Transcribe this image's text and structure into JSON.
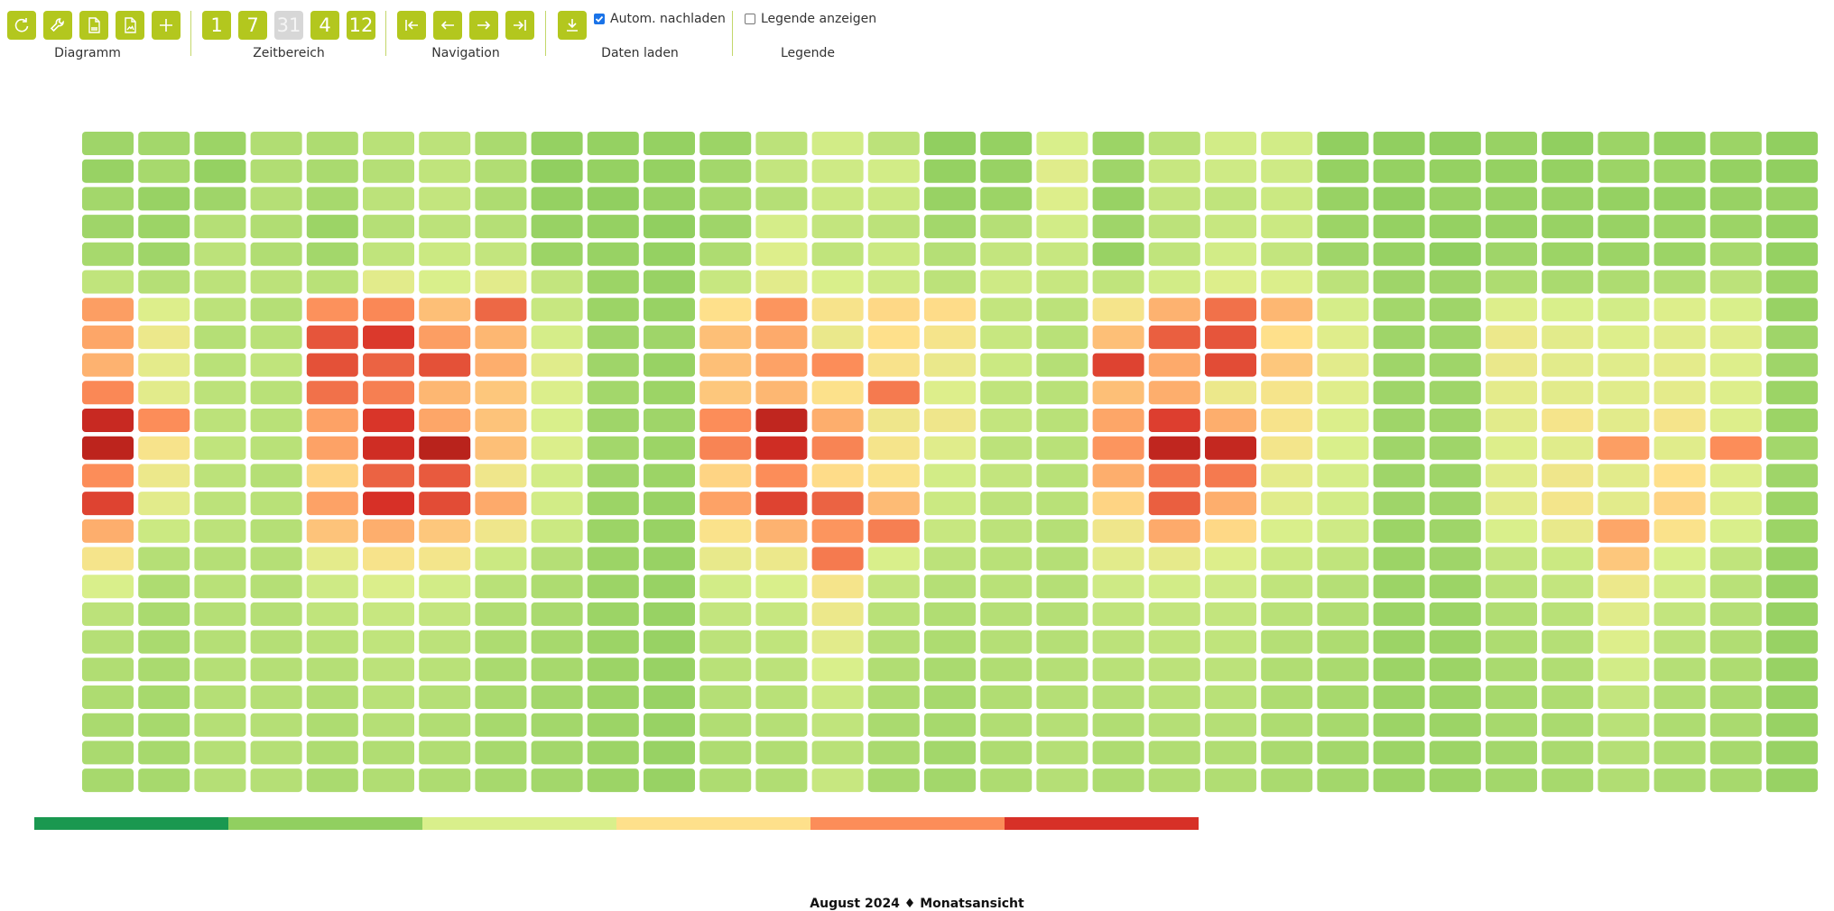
{
  "toolbar": {
    "groups": [
      {
        "label": "Diagramm",
        "buttons": [
          {
            "icon": "refresh-icon"
          },
          {
            "icon": "wrench-icon"
          },
          {
            "icon": "csv-file-icon"
          },
          {
            "icon": "image-file-icon"
          },
          {
            "icon": "plus-icon"
          }
        ]
      },
      {
        "label": "Zeitbereich",
        "buttons": [
          {
            "text": "1"
          },
          {
            "text": "7"
          },
          {
            "text": "31",
            "disabled": true
          },
          {
            "text": "4"
          },
          {
            "text": "12"
          }
        ]
      },
      {
        "label": "Navigation",
        "buttons": [
          {
            "icon": "first-icon"
          },
          {
            "icon": "prev-icon"
          },
          {
            "icon": "next-icon"
          },
          {
            "icon": "last-icon"
          }
        ]
      },
      {
        "label": "Daten laden",
        "buttons": [
          {
            "icon": "download-icon"
          }
        ]
      },
      {
        "label": "Legende"
      }
    ],
    "auto_reload": {
      "label": "Autom. nachladen",
      "checked": true
    },
    "show_legend": {
      "label": "Legende anzeigen",
      "checked": false
    }
  },
  "colors": {
    "accent": "#b3c71e",
    "scale": [
      "#1a9850",
      "#91cf60",
      "#d9ef8b",
      "#fee08b",
      "#fc8d59",
      "#d73027"
    ]
  },
  "chart_data": {
    "type": "heatmap",
    "title": "August 2024 ♦ Monatsansicht",
    "days": 31,
    "hours": 24,
    "value_range": [
      0,
      1
    ],
    "grid": [
      [
        0.24,
        0.25,
        0.23,
        0.29,
        0.28,
        0.31,
        0.32,
        0.27,
        0.21,
        0.21,
        0.21,
        0.23,
        0.32,
        0.38,
        0.32,
        0.2,
        0.21,
        0.4,
        0.23,
        0.31,
        0.38,
        0.38,
        0.2,
        0.2,
        0.2,
        0.22,
        0.2,
        0.23,
        0.21,
        0.23,
        0.2
      ],
      [
        0.22,
        0.26,
        0.21,
        0.29,
        0.27,
        0.3,
        0.33,
        0.29,
        0.2,
        0.21,
        0.21,
        0.25,
        0.34,
        0.37,
        0.38,
        0.21,
        0.22,
        0.44,
        0.24,
        0.35,
        0.37,
        0.37,
        0.21,
        0.21,
        0.21,
        0.21,
        0.21,
        0.23,
        0.23,
        0.21,
        0.2
      ],
      [
        0.25,
        0.22,
        0.24,
        0.3,
        0.26,
        0.32,
        0.34,
        0.28,
        0.21,
        0.2,
        0.22,
        0.26,
        0.3,
        0.36,
        0.36,
        0.22,
        0.23,
        0.42,
        0.22,
        0.34,
        0.33,
        0.36,
        0.22,
        0.2,
        0.22,
        0.22,
        0.22,
        0.21,
        0.21,
        0.22,
        0.22
      ],
      [
        0.24,
        0.23,
        0.3,
        0.29,
        0.23,
        0.3,
        0.32,
        0.3,
        0.22,
        0.21,
        0.2,
        0.24,
        0.39,
        0.34,
        0.32,
        0.25,
        0.3,
        0.38,
        0.24,
        0.32,
        0.35,
        0.36,
        0.23,
        0.21,
        0.21,
        0.22,
        0.22,
        0.22,
        0.23,
        0.23,
        0.21
      ],
      [
        0.26,
        0.24,
        0.32,
        0.29,
        0.25,
        0.33,
        0.36,
        0.34,
        0.23,
        0.22,
        0.21,
        0.28,
        0.42,
        0.33,
        0.36,
        0.3,
        0.34,
        0.35,
        0.22,
        0.33,
        0.38,
        0.34,
        0.24,
        0.22,
        0.2,
        0.24,
        0.23,
        0.23,
        0.23,
        0.26,
        0.21
      ],
      [
        0.33,
        0.3,
        0.32,
        0.32,
        0.31,
        0.45,
        0.4,
        0.45,
        0.34,
        0.23,
        0.22,
        0.35,
        0.45,
        0.4,
        0.37,
        0.32,
        0.37,
        0.35,
        0.33,
        0.38,
        0.42,
        0.41,
        0.32,
        0.24,
        0.24,
        0.28,
        0.27,
        0.28,
        0.29,
        0.32,
        0.23
      ],
      [
        0.76,
        0.42,
        0.32,
        0.3,
        0.79,
        0.81,
        0.68,
        0.88,
        0.35,
        0.23,
        0.22,
        0.6,
        0.78,
        0.56,
        0.62,
        0.61,
        0.34,
        0.32,
        0.55,
        0.71,
        0.86,
        0.7,
        0.39,
        0.25,
        0.24,
        0.42,
        0.4,
        0.38,
        0.42,
        0.4,
        0.22
      ],
      [
        0.74,
        0.5,
        0.3,
        0.31,
        0.92,
        0.98,
        0.76,
        0.7,
        0.39,
        0.24,
        0.24,
        0.68,
        0.73,
        0.49,
        0.6,
        0.55,
        0.35,
        0.31,
        0.68,
        0.9,
        0.92,
        0.6,
        0.43,
        0.24,
        0.24,
        0.5,
        0.45,
        0.42,
        0.44,
        0.43,
        0.24
      ],
      [
        0.71,
        0.46,
        0.31,
        0.33,
        0.93,
        0.89,
        0.93,
        0.72,
        0.44,
        0.24,
        0.22,
        0.68,
        0.75,
        0.8,
        0.57,
        0.49,
        0.36,
        0.3,
        0.96,
        0.73,
        0.94,
        0.66,
        0.45,
        0.24,
        0.24,
        0.49,
        0.45,
        0.44,
        0.46,
        0.42,
        0.24
      ],
      [
        0.81,
        0.45,
        0.32,
        0.31,
        0.86,
        0.83,
        0.7,
        0.66,
        0.41,
        0.25,
        0.23,
        0.66,
        0.7,
        0.59,
        0.84,
        0.42,
        0.33,
        0.31,
        0.68,
        0.72,
        0.5,
        0.55,
        0.43,
        0.24,
        0.24,
        0.46,
        0.45,
        0.44,
        0.46,
        0.42,
        0.23
      ],
      [
        1.04,
        0.8,
        0.32,
        0.31,
        0.75,
        0.99,
        0.74,
        0.67,
        0.4,
        0.24,
        0.24,
        0.8,
        1.06,
        0.72,
        0.52,
        0.52,
        0.34,
        0.31,
        0.74,
        0.97,
        0.72,
        0.56,
        0.41,
        0.24,
        0.24,
        0.45,
        0.55,
        0.45,
        0.55,
        0.42,
        0.23
      ],
      [
        1.07,
        0.56,
        0.33,
        0.31,
        0.75,
        1.02,
        1.08,
        0.68,
        0.41,
        0.25,
        0.23,
        0.82,
        1.02,
        0.82,
        0.55,
        0.44,
        0.32,
        0.31,
        0.78,
        1.06,
        1.05,
        0.54,
        0.4,
        0.24,
        0.24,
        0.42,
        0.44,
        0.76,
        0.44,
        0.8,
        0.25
      ],
      [
        0.8,
        0.5,
        0.32,
        0.3,
        0.63,
        0.89,
        0.91,
        0.52,
        0.38,
        0.24,
        0.23,
        0.63,
        0.8,
        0.61,
        0.58,
        0.38,
        0.34,
        0.31,
        0.72,
        0.85,
        0.84,
        0.46,
        0.39,
        0.24,
        0.24,
        0.44,
        0.52,
        0.45,
        0.6,
        0.42,
        0.24
      ],
      [
        0.96,
        0.45,
        0.32,
        0.31,
        0.75,
        1.0,
        0.94,
        0.73,
        0.38,
        0.23,
        0.22,
        0.75,
        0.96,
        0.89,
        0.69,
        0.36,
        0.32,
        0.31,
        0.63,
        0.9,
        0.72,
        0.44,
        0.38,
        0.24,
        0.24,
        0.45,
        0.54,
        0.45,
        0.63,
        0.42,
        0.23
      ],
      [
        0.72,
        0.36,
        0.32,
        0.3,
        0.67,
        0.72,
        0.66,
        0.52,
        0.36,
        0.23,
        0.22,
        0.58,
        0.71,
        0.78,
        0.83,
        0.35,
        0.32,
        0.3,
        0.52,
        0.73,
        0.62,
        0.4,
        0.37,
        0.23,
        0.24,
        0.4,
        0.48,
        0.74,
        0.58,
        0.4,
        0.23
      ],
      [
        0.55,
        0.3,
        0.3,
        0.3,
        0.46,
        0.56,
        0.54,
        0.36,
        0.3,
        0.23,
        0.22,
        0.48,
        0.5,
        0.84,
        0.4,
        0.32,
        0.31,
        0.3,
        0.45,
        0.47,
        0.42,
        0.36,
        0.33,
        0.23,
        0.24,
        0.34,
        0.36,
        0.66,
        0.4,
        0.33,
        0.22
      ],
      [
        0.4,
        0.28,
        0.31,
        0.3,
        0.37,
        0.41,
        0.38,
        0.31,
        0.28,
        0.23,
        0.22,
        0.38,
        0.4,
        0.55,
        0.34,
        0.3,
        0.31,
        0.3,
        0.37,
        0.38,
        0.37,
        0.33,
        0.3,
        0.23,
        0.23,
        0.31,
        0.34,
        0.5,
        0.38,
        0.31,
        0.22
      ],
      [
        0.32,
        0.27,
        0.3,
        0.3,
        0.33,
        0.35,
        0.34,
        0.29,
        0.27,
        0.23,
        0.22,
        0.34,
        0.35,
        0.5,
        0.31,
        0.29,
        0.3,
        0.3,
        0.33,
        0.34,
        0.34,
        0.31,
        0.29,
        0.23,
        0.23,
        0.29,
        0.31,
        0.44,
        0.34,
        0.3,
        0.22
      ],
      [
        0.3,
        0.27,
        0.3,
        0.3,
        0.31,
        0.33,
        0.32,
        0.28,
        0.26,
        0.23,
        0.22,
        0.32,
        0.33,
        0.45,
        0.3,
        0.28,
        0.3,
        0.3,
        0.32,
        0.33,
        0.33,
        0.3,
        0.28,
        0.23,
        0.23,
        0.28,
        0.3,
        0.42,
        0.32,
        0.29,
        0.22
      ],
      [
        0.29,
        0.27,
        0.3,
        0.3,
        0.3,
        0.32,
        0.31,
        0.27,
        0.26,
        0.23,
        0.22,
        0.31,
        0.32,
        0.4,
        0.29,
        0.27,
        0.29,
        0.3,
        0.31,
        0.32,
        0.32,
        0.29,
        0.27,
        0.23,
        0.23,
        0.27,
        0.29,
        0.38,
        0.3,
        0.28,
        0.22
      ],
      [
        0.28,
        0.26,
        0.3,
        0.3,
        0.29,
        0.31,
        0.3,
        0.27,
        0.25,
        0.23,
        0.22,
        0.3,
        0.31,
        0.36,
        0.28,
        0.26,
        0.29,
        0.3,
        0.3,
        0.31,
        0.31,
        0.28,
        0.26,
        0.23,
        0.23,
        0.26,
        0.28,
        0.34,
        0.29,
        0.27,
        0.22
      ],
      [
        0.27,
        0.26,
        0.3,
        0.3,
        0.28,
        0.3,
        0.29,
        0.26,
        0.25,
        0.23,
        0.22,
        0.29,
        0.3,
        0.33,
        0.27,
        0.26,
        0.29,
        0.3,
        0.29,
        0.3,
        0.3,
        0.28,
        0.26,
        0.23,
        0.23,
        0.26,
        0.27,
        0.31,
        0.28,
        0.27,
        0.22
      ],
      [
        0.27,
        0.26,
        0.3,
        0.3,
        0.28,
        0.29,
        0.29,
        0.26,
        0.25,
        0.23,
        0.22,
        0.28,
        0.29,
        0.31,
        0.27,
        0.25,
        0.28,
        0.3,
        0.28,
        0.29,
        0.29,
        0.27,
        0.25,
        0.23,
        0.23,
        0.25,
        0.27,
        0.3,
        0.28,
        0.26,
        0.22
      ],
      [
        0.26,
        0.26,
        0.3,
        0.3,
        0.27,
        0.29,
        0.28,
        0.26,
        0.25,
        0.23,
        0.22,
        0.28,
        0.29,
        0.35,
        0.26,
        0.25,
        0.28,
        0.3,
        0.28,
        0.29,
        0.29,
        0.27,
        0.25,
        0.23,
        0.23,
        0.25,
        0.26,
        0.29,
        0.27,
        0.26,
        0.22
      ]
    ],
    "color_scale": [
      "#1a9850",
      "#91cf60",
      "#d9ef8b",
      "#fee08b",
      "#fc8d59",
      "#d73027"
    ],
    "grid_on": false,
    "legend": "none"
  }
}
